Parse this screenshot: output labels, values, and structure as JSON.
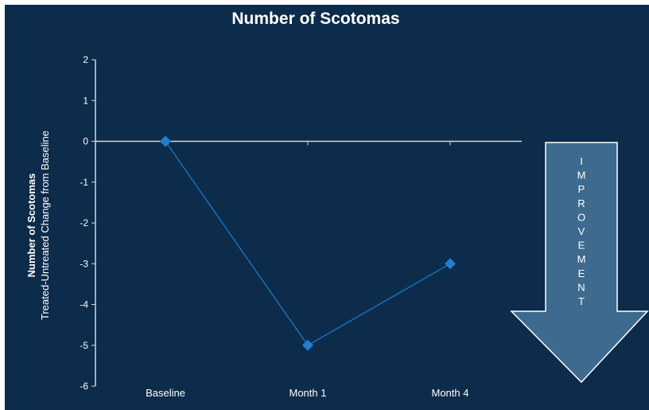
{
  "chart_data": {
    "type": "line",
    "title": "Number of Scotomas",
    "ylabel_bold": "Number of Scotomas",
    "ylabel": "Treated-Untreated Change from Baseline",
    "categories": [
      "Baseline",
      "Month 1",
      "Month 4"
    ],
    "series": [
      {
        "values": [
          0,
          -5,
          -3
        ]
      }
    ],
    "ylim": [
      -6,
      2
    ],
    "yticks": [
      "2",
      "1",
      "0",
      "-1",
      "-2",
      "-3",
      "-4",
      "-5",
      "-6"
    ],
    "grid": false,
    "annotation": "IMPROVEMENT"
  },
  "colors": {
    "background": "#0d2b4a",
    "line": "#1a6fb5",
    "marker": "#1f7fd0",
    "axis": "#d0d8e2",
    "arrow_fill": "#3d6a8e",
    "arrow_stroke": "#ffffff"
  }
}
